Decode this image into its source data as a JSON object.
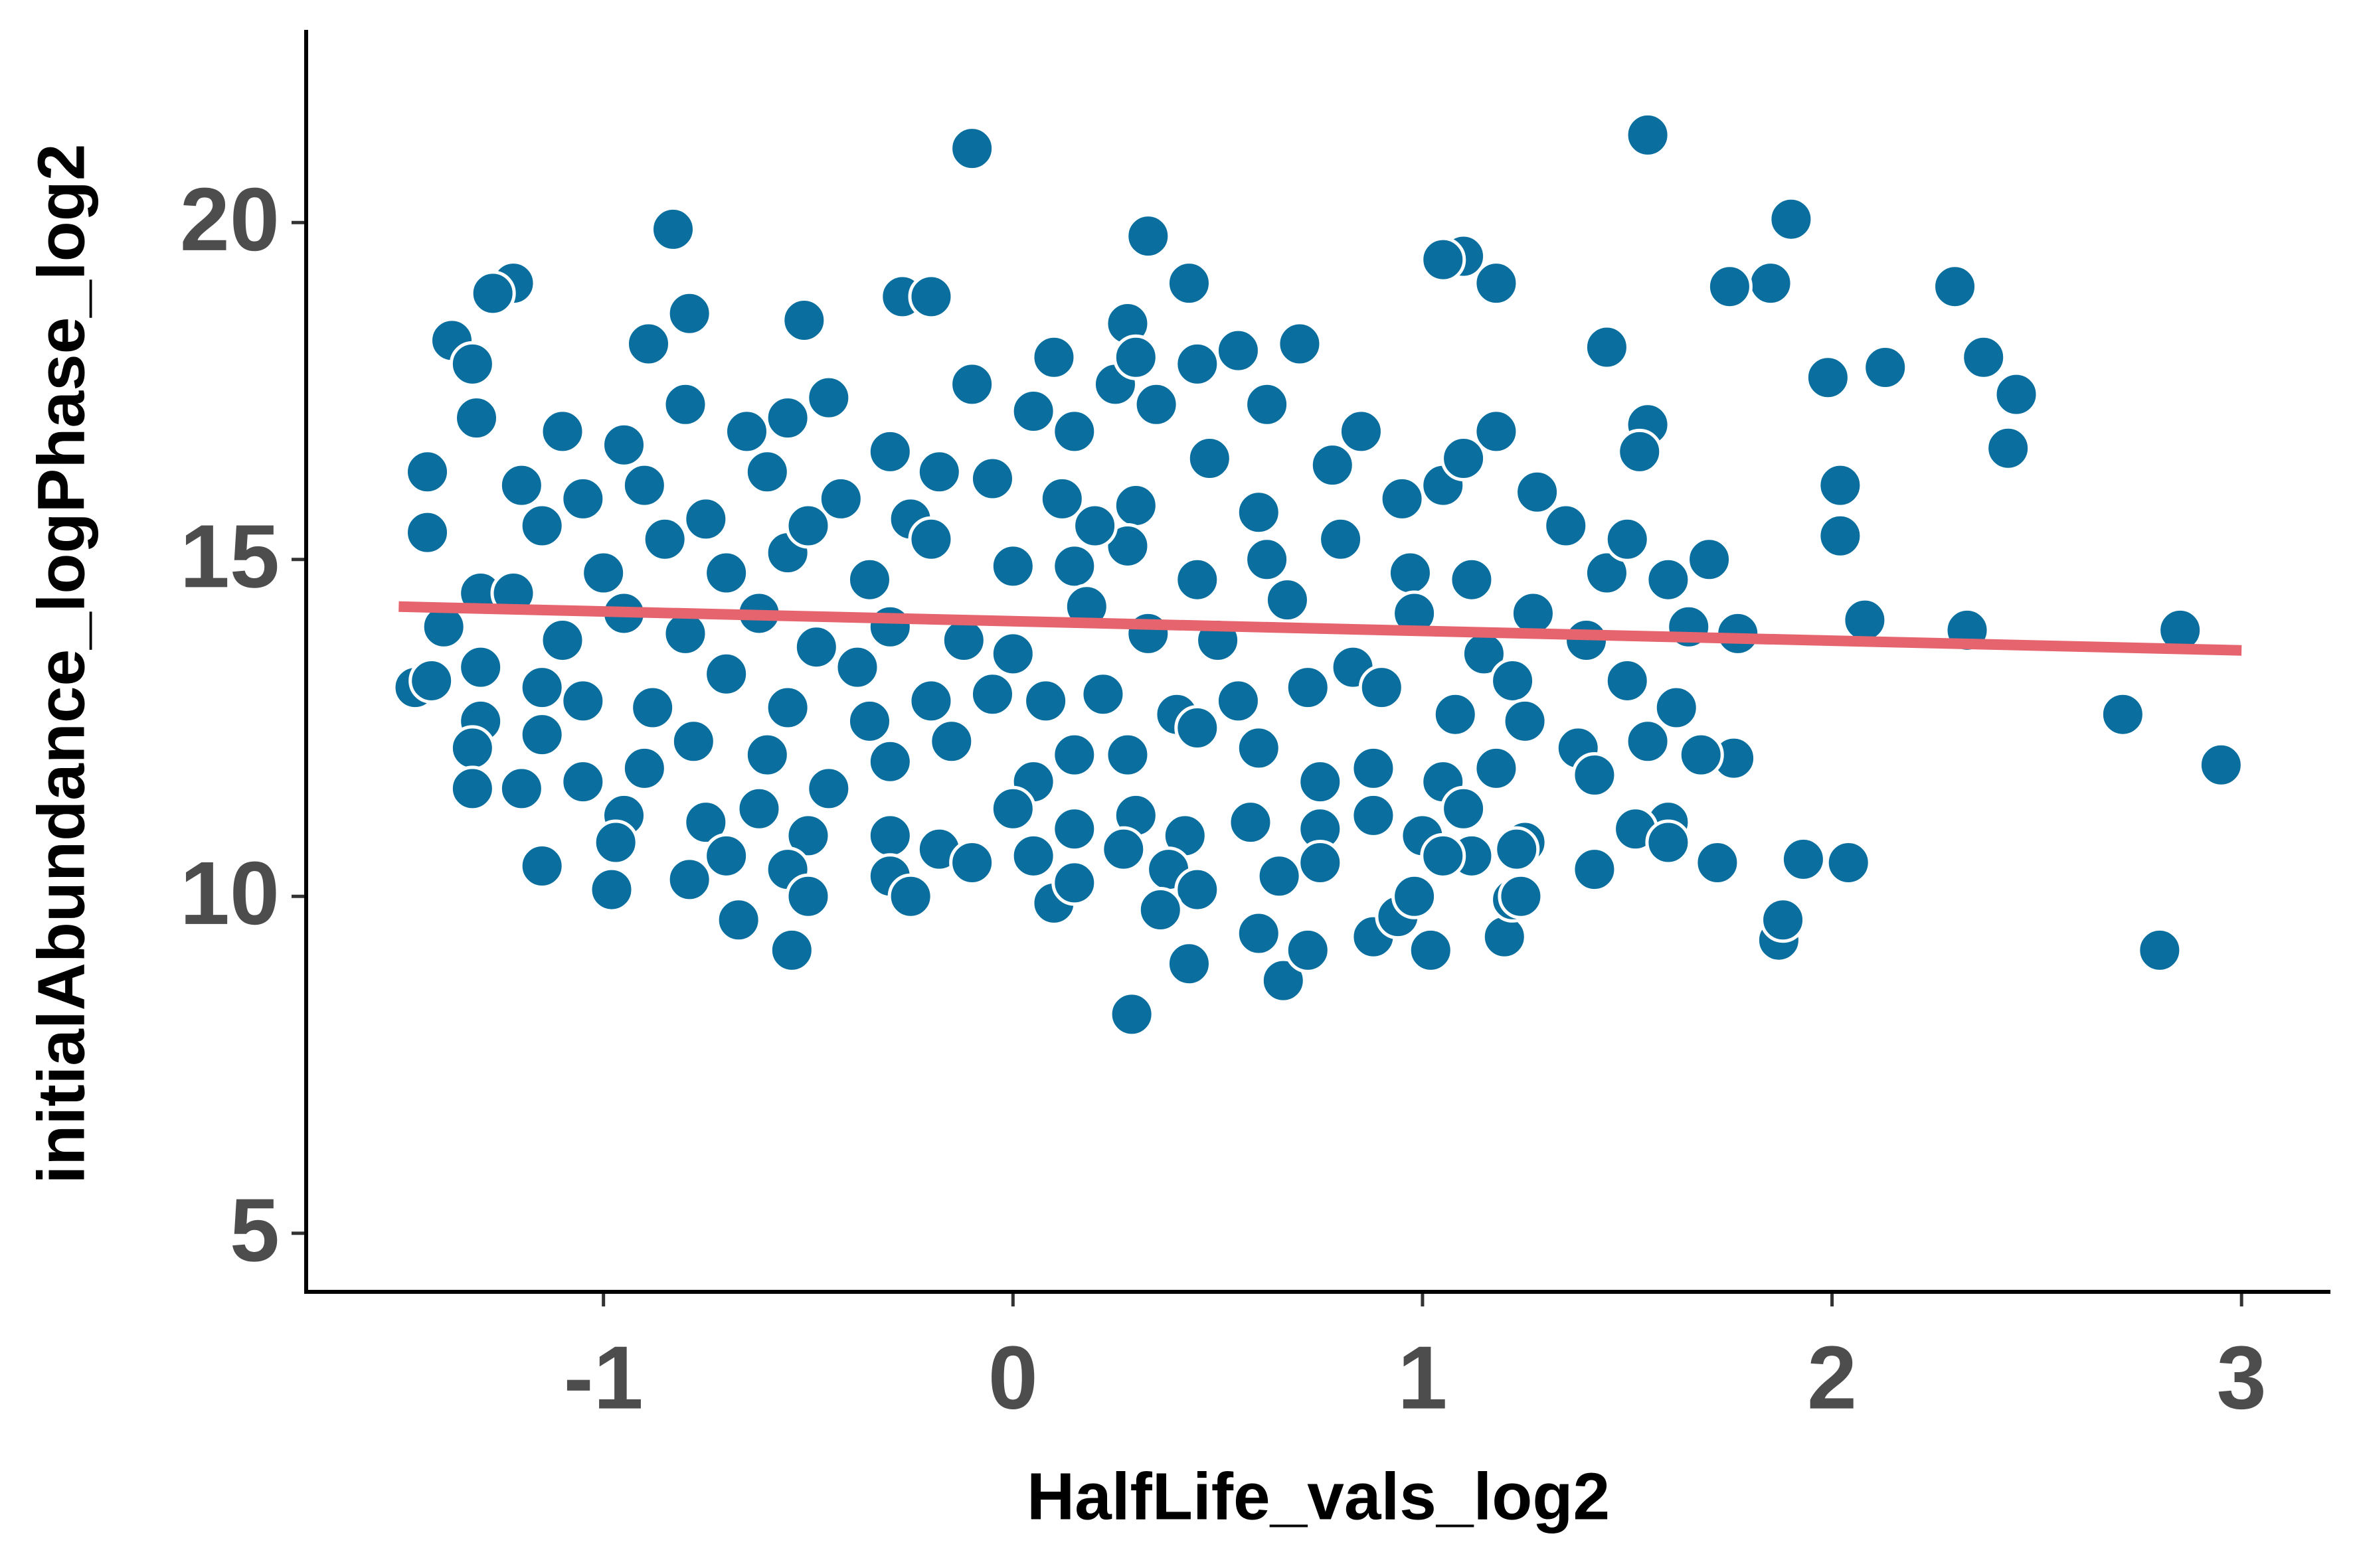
{
  "chart_data": {
    "type": "scatter",
    "x_label": "HalfLife_vals_log2",
    "y_label": "initialAbundance_logPhase_log2",
    "color": "#0a6e9e",
    "x": [
      -0.1,
      1.55,
      1.9,
      0.33,
      -0.83,
      1.1,
      1.05,
      1.18,
      1.85,
      1.75,
      2.3,
      0.43,
      -1.22,
      -1.27,
      -0.27,
      -0.2,
      -0.51,
      0.28,
      -0.79,
      -0.89,
      -1.37,
      -1.32,
      1.45,
      2.37,
      2.13,
      1.99,
      2.45,
      2.43,
      2.02,
      2.02,
      2.08,
      2.33,
      2.85,
      2.71,
      2.95,
      2.8,
      1.87,
      1.88,
      1.93,
      2.04,
      1.55,
      1.53,
      0.29,
      0.43,
      0.66,
      0.72,
      -0.54,
      -0.67,
      -0.98,
      -0.79,
      -1.15,
      -1.43,
      -1.43,
      -1.46,
      -1.42,
      -1.39,
      -1.31,
      1.72,
      1.76,
      1.68,
      1.6,
      1.52,
      1.42,
      1.2,
      1.22,
      1.02,
      0.88,
      0.94,
      0.6,
      -0.55,
      -0.45,
      -0.3,
      -0.1,
      0.05,
      0.1,
      0.25,
      0.35,
      0.45,
      0.55,
      0.62,
      0.7,
      0.15,
      -0.18,
      -0.65,
      -0.8,
      -0.95,
      -1.1,
      0.3,
      -1.2,
      -1.05,
      -0.9,
      -0.75,
      -0.6,
      -0.42,
      -0.25,
      -0.05,
      0.12,
      0.3,
      0.48,
      0.6,
      0.78,
      0.95,
      1.05,
      1.18,
      1.28,
      1.35,
      0.85,
      1.1,
      -1.3,
      -1.15,
      -1.0,
      -0.85,
      -0.7,
      -0.55,
      -0.35,
      -0.2,
      0.0,
      0.15,
      0.28,
      0.45,
      0.62,
      0.8,
      0.97,
      1.12,
      1.45,
      1.6,
      1.7,
      1.5,
      0.2,
      -0.5,
      -1.22,
      -1.1,
      -0.95,
      -0.8,
      -0.62,
      -0.48,
      -0.3,
      -0.12,
      0.0,
      0.18,
      0.33,
      0.5,
      0.67,
      0.83,
      0.98,
      1.15,
      1.27,
      1.4,
      1.65,
      1.77,
      -1.3,
      -1.3,
      -1.15,
      -1.05,
      -0.88,
      -0.7,
      -0.55,
      -0.38,
      -0.2,
      -0.05,
      0.08,
      0.22,
      0.4,
      0.55,
      0.72,
      0.9,
      1.08,
      1.22,
      1.38,
      1.5,
      1.62,
      1.25,
      -1.32,
      -1.15,
      -1.05,
      -0.9,
      -0.78,
      -0.6,
      -0.45,
      -0.3,
      -0.15,
      0.05,
      0.15,
      0.28,
      0.45,
      0.6,
      0.75,
      0.88,
      1.05,
      1.18,
      1.42,
      1.55,
      -0.35,
      -1.32,
      -1.2,
      -0.95,
      -0.75,
      -0.62,
      -0.5,
      -0.3,
      -0.18,
      0.0,
      0.15,
      0.3,
      0.42,
      0.58,
      0.75,
      0.88,
      1.0,
      1.1,
      1.25,
      1.6,
      1.12,
      -0.7,
      -0.55,
      -0.3,
      -0.25,
      -0.1,
      0.05,
      0.1,
      0.15,
      0.27,
      0.38,
      0.45,
      0.36,
      0.65,
      0.75,
      0.98,
      1.05,
      1.23,
      -0.5,
      -0.97,
      1.24
    ],
    "values": [
      21.1,
      21.3,
      20.05,
      19.8,
      19.9,
      19.5,
      19.45,
      19.1,
      19.1,
      19.05,
      19.05,
      19.1,
      19.1,
      18.95,
      18.9,
      18.9,
      18.55,
      18.5,
      18.65,
      18.2,
      18.25,
      17.9,
      18.15,
      18.0,
      17.85,
      17.7,
      17.45,
      16.65,
      16.1,
      15.35,
      14.1,
      13.95,
      13.95,
      12.7,
      11.95,
      9.2,
      9.35,
      9.65,
      10.55,
      10.5,
      17.0,
      16.6,
      8.25,
      9.0,
      8.75,
      9.2,
      9.2,
      9.65,
      10.1,
      10.25,
      10.45,
      16.3,
      15.4,
      13.1,
      13.2,
      14.0,
      17.1,
      10.5,
      12.05,
      12.1,
      11.1,
      11.0,
      10.4,
      9.4,
      9.95,
      9.2,
      9.4,
      9.7,
      9.45,
      17.1,
      17.4,
      16.6,
      17.6,
      17.2,
      18.0,
      17.6,
      17.3,
      17.9,
      18.1,
      17.3,
      18.2,
      16.9,
      16.3,
      16.9,
      17.3,
      16.7,
      16.9,
      18.0,
      16.1,
      15.9,
      16.1,
      15.6,
      16.3,
      15.9,
      15.6,
      16.2,
      15.9,
      15.8,
      16.5,
      15.7,
      16.4,
      15.9,
      16.1,
      16.9,
      16.0,
      15.5,
      16.9,
      16.5,
      14.5,
      15.5,
      14.8,
      15.3,
      14.8,
      15.1,
      14.7,
      15.3,
      14.9,
      14.9,
      15.2,
      14.7,
      15.0,
      15.3,
      14.8,
      14.7,
      14.8,
      14.7,
      15.0,
      15.3,
      15.5,
      15.5,
      14.5,
      13.8,
      14.2,
      13.9,
      14.2,
      13.7,
      14.0,
      13.8,
      13.6,
      14.3,
      13.9,
      13.8,
      14.4,
      13.4,
      14.2,
      13.6,
      14.2,
      13.8,
      14.0,
      13.9,
      13.4,
      12.6,
      13.1,
      12.9,
      12.8,
      13.3,
      12.8,
      13.4,
      12.9,
      13.0,
      12.9,
      13.0,
      12.7,
      12.9,
      13.1,
      13.1,
      12.7,
      13.2,
      12.2,
      13.2,
      12.8,
      12.6,
      12.2,
      12.4,
      11.7,
      11.9,
      12.3,
      12.1,
      11.6,
      12.0,
      12.3,
      11.7,
      12.1,
      12.1,
      12.5,
      12.2,
      11.7,
      11.9,
      11.7,
      11.9,
      11.8,
      12.3,
      12.6,
      11.6,
      11.6,
      11.2,
      11.1,
      11.3,
      10.9,
      10.9,
      10.7,
      11.3,
      11.0,
      11.2,
      10.9,
      11.1,
      11.0,
      11.2,
      10.9,
      11.3,
      10.8,
      10.8,
      10.6,
      10.6,
      10.4,
      10.3,
      10.0,
      10.5,
      10.6,
      9.9,
      10.2,
      10.7,
      10.4,
      10.1,
      9.8,
      10.3,
      10.5,
      10.0,
      10.6,
      10.7,
      10.0,
      10.8,
      10.0
    ],
    "fit": {
      "x": [
        -1.5,
        3
      ],
      "y": [
        14.3,
        13.65
      ],
      "color": "#e5646e"
    },
    "xlim": [
      -1.726,
      3.217
    ],
    "xticks": [
      -1,
      0,
      1,
      2,
      3
    ],
    "ylim": [
      4.13,
      22.86
    ],
    "yticks": [
      5,
      10,
      15,
      20
    ]
  }
}
